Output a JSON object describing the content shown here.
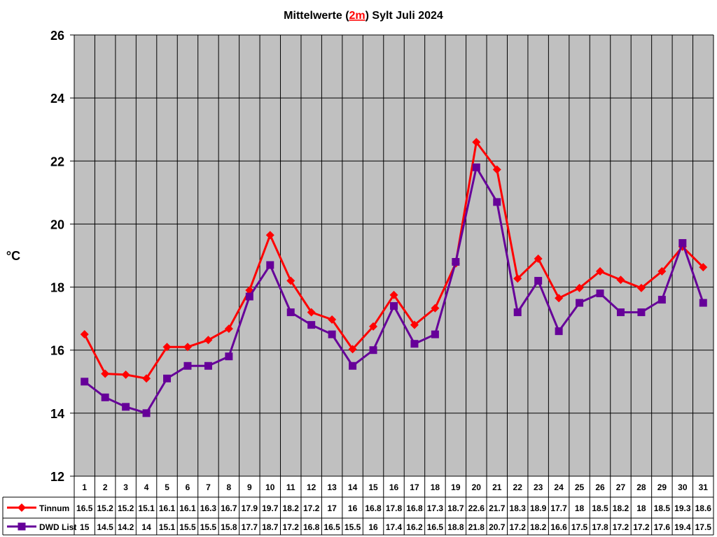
{
  "chart_data": {
    "type": "line",
    "title": {
      "prefix": "Mittelwerte (",
      "highlight": "2m",
      "suffix": ") Sylt Juli 2024"
    },
    "ylabel": "°C",
    "xlabel": "",
    "ylim": [
      12,
      26
    ],
    "yticks": [
      12,
      14,
      16,
      18,
      20,
      22,
      24,
      26
    ],
    "grid": true,
    "categories": [
      "1",
      "2",
      "3",
      "4",
      "5",
      "6",
      "7",
      "8",
      "9",
      "10",
      "11",
      "12",
      "13",
      "14",
      "15",
      "16",
      "17",
      "18",
      "19",
      "20",
      "21",
      "22",
      "23",
      "24",
      "25",
      "26",
      "27",
      "28",
      "29",
      "30",
      "31"
    ],
    "series": [
      {
        "name": "Tinnum",
        "color": "#ff0000",
        "marker": "diamond",
        "values": [
          16.5,
          15.25,
          15.22,
          15.1,
          16.1,
          16.1,
          16.32,
          16.68,
          17.9,
          19.65,
          18.2,
          17.2,
          16.97,
          16.03,
          16.75,
          17.75,
          16.8,
          17.33,
          18.75,
          22.6,
          21.73,
          18.27,
          18.9,
          17.65,
          17.97,
          18.5,
          18.23,
          17.97,
          18.5,
          19.28,
          18.63
        ],
        "labels": [
          "16.5",
          "15.2",
          "15.2",
          "15.1",
          "16.1",
          "16.1",
          "16.3",
          "16.7",
          "17.9",
          "19.7",
          "18.2",
          "17.2",
          "17",
          "16",
          "16.8",
          "17.8",
          "16.8",
          "17.3",
          "18.7",
          "22.6",
          "21.7",
          "18.3",
          "18.9",
          "17.7",
          "18",
          "18.5",
          "18.2",
          "18",
          "18.5",
          "19.3",
          "18.6"
        ]
      },
      {
        "name": "DWD List",
        "color": "#660099",
        "marker": "square",
        "values": [
          15,
          14.5,
          14.2,
          14,
          15.1,
          15.5,
          15.5,
          15.8,
          17.7,
          18.7,
          17.2,
          16.8,
          16.5,
          15.5,
          16,
          17.4,
          16.2,
          16.5,
          18.8,
          21.8,
          20.7,
          17.2,
          18.2,
          16.6,
          17.5,
          17.8,
          17.2,
          17.2,
          17.6,
          19.4,
          17.5
        ],
        "labels": [
          "15",
          "14.5",
          "14.2",
          "14",
          "15.1",
          "15.5",
          "15.5",
          "15.8",
          "17.7",
          "18.7",
          "17.2",
          "16.8",
          "16.5",
          "15.5",
          "16",
          "17.4",
          "16.2",
          "16.5",
          "18.8",
          "21.8",
          "20.7",
          "17.2",
          "18.2",
          "16.6",
          "17.5",
          "17.8",
          "17.2",
          "17.2",
          "17.6",
          "19.4",
          "17.5"
        ]
      }
    ]
  },
  "colors": {
    "plot_background": "#c0c0c0",
    "grid": "#000000",
    "title_highlight": "#ff0000"
  }
}
